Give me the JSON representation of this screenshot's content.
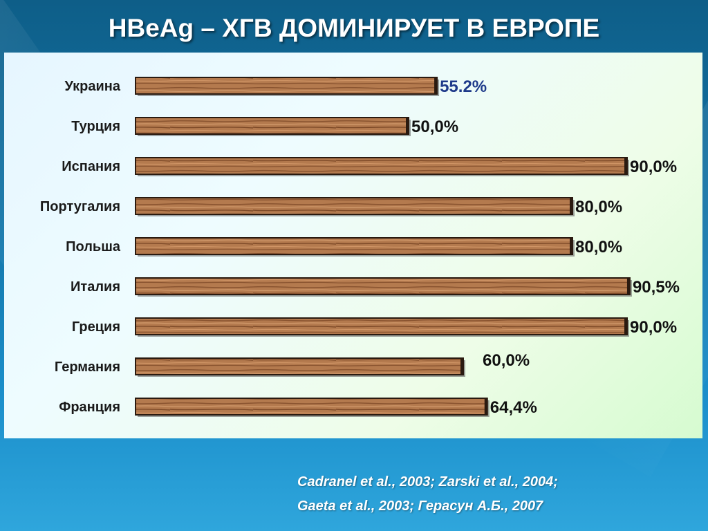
{
  "slide": {
    "title": "HBeAg – ХГВ ДОМИНИРУЕТ В ЕВРОПЕ",
    "references": [
      "Cadranel et al., 2003; Zarski et al., 2004;",
      "Gaeta et al., 2003; Герасун А.Б., 2007"
    ]
  },
  "chart_data": {
    "type": "bar",
    "orientation": "horizontal",
    "categories": [
      "Украина",
      "Турция",
      "Испания",
      "Португалия",
      "Польша",
      "Италия",
      "Греция",
      "Германия",
      "Франция"
    ],
    "values": [
      55.2,
      50.0,
      90.0,
      80.0,
      80.0,
      90.5,
      90.0,
      60.0,
      64.4
    ],
    "data_labels": [
      "55.2%",
      "50,0%",
      "90,0%",
      "80,0%",
      "80,0%",
      "90,5%",
      "90,0%",
      "60,0%",
      "64,4%"
    ],
    "title": "",
    "xlabel": "",
    "ylabel": "",
    "xlim": [
      0,
      100
    ],
    "grid": false,
    "colors": {
      "bar_wood_light": "#c4875a",
      "bar_wood_dark": "#7a4a28",
      "bar_edge": "#2a1a10",
      "first_label": "#1e3a8a"
    }
  }
}
